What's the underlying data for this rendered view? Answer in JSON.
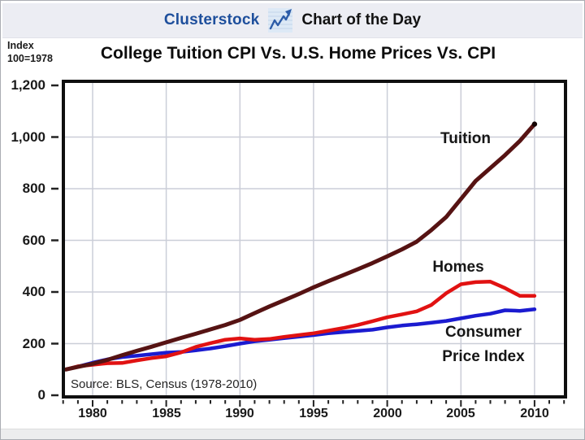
{
  "header": {
    "brand": "Clusterstock",
    "title": "Chart of the Day",
    "icon": "line-chart-icon",
    "brand_color": "#1e4f9c",
    "background": "#ecedf3"
  },
  "index_note": {
    "line1": "Index",
    "line2": "100=1978"
  },
  "chart_title": "College Tuition CPI Vs. U.S. Home Prices Vs. CPI",
  "source_note": "Source: BLS, Census (1978-2010)",
  "annotations": {
    "tuition": "Tuition",
    "homes": "Homes",
    "cpi_line1": "Consumer",
    "cpi_line2": "Price Index"
  },
  "colors": {
    "tuition": "#561313",
    "homes": "#e11212",
    "cpi": "#1b1bd0",
    "grid": "#cbced8",
    "frame": "#0f0f0f",
    "axis_text": "#1a1a1a"
  },
  "chart_data": {
    "type": "line",
    "title": "College Tuition CPI Vs. U.S. Home Prices Vs. CPI",
    "xlabel": "",
    "ylabel": "Index 100=1978",
    "xlim": [
      1978,
      2012
    ],
    "ylim": [
      0,
      1200
    ],
    "grid": true,
    "legend_position": "inline-annotations",
    "x_tick_values": [
      1980,
      1985,
      1990,
      1995,
      2000,
      2005,
      2010
    ],
    "x_tick_labels": [
      "1980",
      "1985",
      "1990",
      "1995",
      "2000",
      "2005",
      "2010"
    ],
    "y_tick_values": [
      1200,
      1000,
      800,
      600,
      400,
      200,
      0
    ],
    "y_tick_labels": [
      "1,200",
      "1,000",
      "800",
      "600",
      "400",
      "200",
      "0"
    ],
    "y_grid": [
      200,
      400,
      600,
      800,
      1000
    ],
    "x": [
      1978,
      1979,
      1980,
      1981,
      1982,
      1983,
      1984,
      1985,
      1986,
      1987,
      1988,
      1989,
      1990,
      1991,
      1992,
      1993,
      1994,
      1995,
      1996,
      1997,
      1998,
      1999,
      2000,
      2001,
      2002,
      2003,
      2004,
      2005,
      2006,
      2007,
      2008,
      2009,
      2010
    ],
    "series": [
      {
        "name": "Tuition",
        "color": "#561313",
        "width": 5,
        "end_dot": true,
        "values": [
          100,
          110,
          122,
          137,
          155,
          172,
          188,
          205,
          222,
          238,
          255,
          272,
          292,
          318,
          344,
          368,
          392,
          418,
          442,
          465,
          488,
          512,
          538,
          565,
          595,
          640,
          690,
          760,
          830,
          880,
          930,
          985,
          1050
        ]
      },
      {
        "name": "Homes",
        "color": "#e11212",
        "width": 4.5,
        "end_dot": false,
        "values": [
          100,
          112,
          118,
          124,
          125,
          135,
          144,
          151,
          166,
          187,
          202,
          215,
          220,
          215,
          218,
          226,
          233,
          240,
          250,
          260,
          272,
          287,
          302,
          313,
          325,
          350,
          395,
          430,
          438,
          440,
          415,
          385,
          385
        ]
      },
      {
        "name": "Consumer Price Index",
        "color": "#1b1bd0",
        "width": 4.5,
        "end_dot": false,
        "values": [
          100,
          111,
          126,
          139,
          148,
          153,
          159,
          165,
          168,
          174,
          181,
          190,
          200,
          209,
          215,
          221,
          227,
          233,
          240,
          245,
          249,
          254,
          263,
          270,
          275,
          281,
          288,
          298,
          308,
          316,
          329,
          327,
          333
        ]
      }
    ]
  }
}
